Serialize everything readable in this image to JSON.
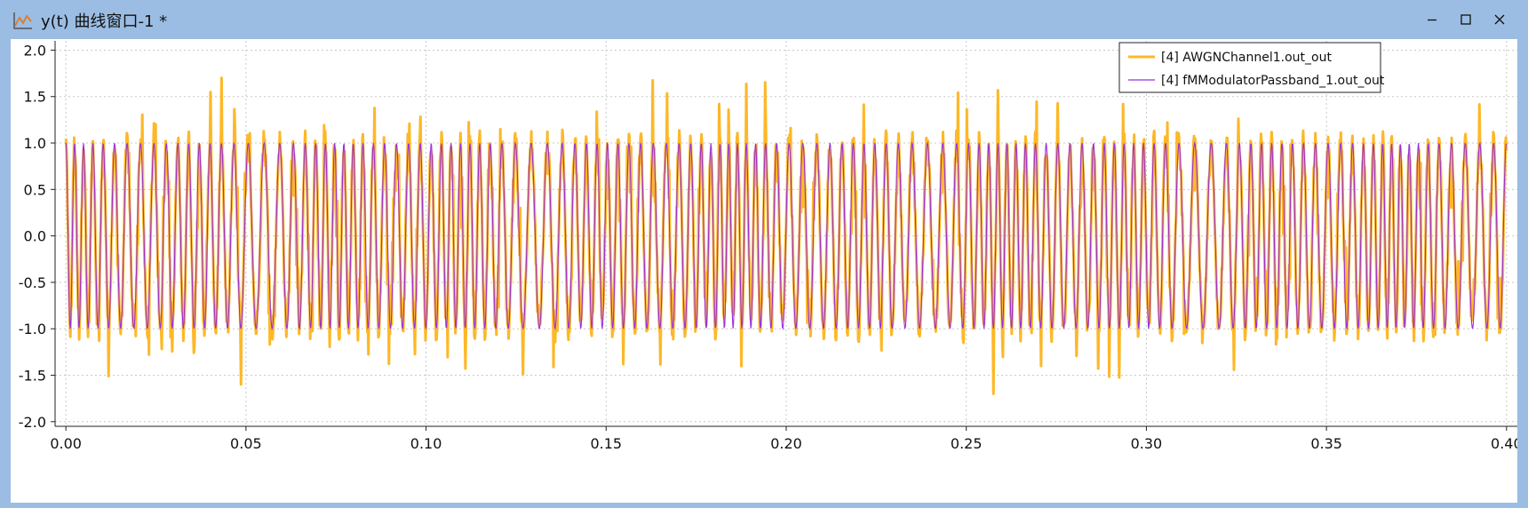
{
  "window": {
    "title": "y(t) 曲线窗口-1 *",
    "controls": {
      "minimize": "–",
      "maximize": "☐",
      "close": "✕"
    }
  },
  "colors": {
    "awgn": "#FDB827",
    "fm": "#9B30D9",
    "titlebar": "#9bbde4",
    "grid": "#c8c8c8"
  },
  "chart_data": {
    "type": "line",
    "title": "",
    "xlabel": "",
    "ylabel": "",
    "xlim": [
      -0.003,
      0.403
    ],
    "ylim": [
      -2.05,
      2.1
    ],
    "xticks": [
      0.0,
      0.05,
      0.1,
      0.15,
      0.2,
      0.25,
      0.3,
      0.35,
      0.4
    ],
    "xtick_labels": [
      "0.00",
      "0.05",
      "0.10",
      "0.15",
      "0.20",
      "0.25",
      "0.30",
      "0.35",
      "0.40"
    ],
    "yticks": [
      2.0,
      1.5,
      1.0,
      0.5,
      0.0,
      -0.5,
      -1.0,
      -1.5,
      -2.0
    ],
    "ytick_labels": [
      "2.0",
      "1.5",
      "1.0",
      "0.5",
      "0.0",
      "-0.5",
      "-1.0",
      "-1.5",
      "-2.0"
    ],
    "grid": true,
    "legend_position": "top-right",
    "series": [
      {
        "name": "[4] AWGNChannel1.out_out",
        "description": "noisy FM passband signal, amplitude about ±1 with noise peaks to about ±1.6"
      },
      {
        "name": "[4] fMModulatorPassband_1.out_out",
        "description": "FM passband carrier, amplitude ±1, about 126 cycles over 0–0.40"
      }
    ],
    "signal": {
      "amplitude": 1.0,
      "x_start": 0.0,
      "x_end": 0.4,
      "cycles": 126,
      "noise_max": 0.65
    }
  }
}
